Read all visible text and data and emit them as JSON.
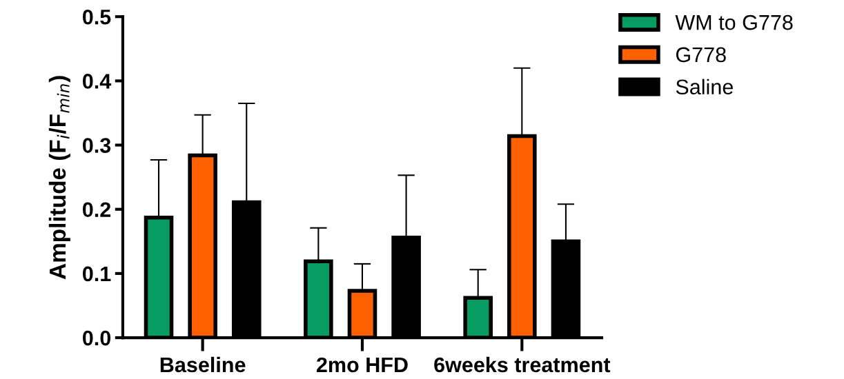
{
  "chart_data": {
    "type": "bar",
    "ylabel": "Amplitude (F$_{i}$/F$_{min}$)",
    "categories": [
      "Baseline",
      "2mo HFD",
      "6weeks treatment"
    ],
    "ylim": [
      0,
      0.5
    ],
    "yticks": [
      {
        "value": 0,
        "label": "0.0"
      },
      0.1,
      0.2,
      0.3,
      0.4,
      0.5
    ],
    "grid": false,
    "legend": "top right",
    "series": [
      {
        "name": "WM to G778",
        "color": "#069c62",
        "values": [
          0.187,
          0.119,
          0.062
        ],
        "errors": [
          [
            0.187,
            0.277
          ],
          [
            0.119,
            0.171
          ],
          [
            0.062,
            0.106
          ]
        ]
      },
      {
        "name": "G778",
        "color": "#ff6000",
        "values": [
          0.284,
          0.073,
          0.314
        ],
        "errors": [
          [
            0.284,
            0.347
          ],
          [
            0.073,
            0.115
          ],
          [
            0.314,
            0.42
          ]
        ]
      },
      {
        "name": "Saline",
        "color": "#000000",
        "values": [
          0.211,
          0.156,
          0.15
        ],
        "errors": [
          [
            0.211,
            0.365
          ],
          [
            0.156,
            0.253
          ],
          [
            0.15,
            0.208
          ]
        ]
      }
    ]
  }
}
